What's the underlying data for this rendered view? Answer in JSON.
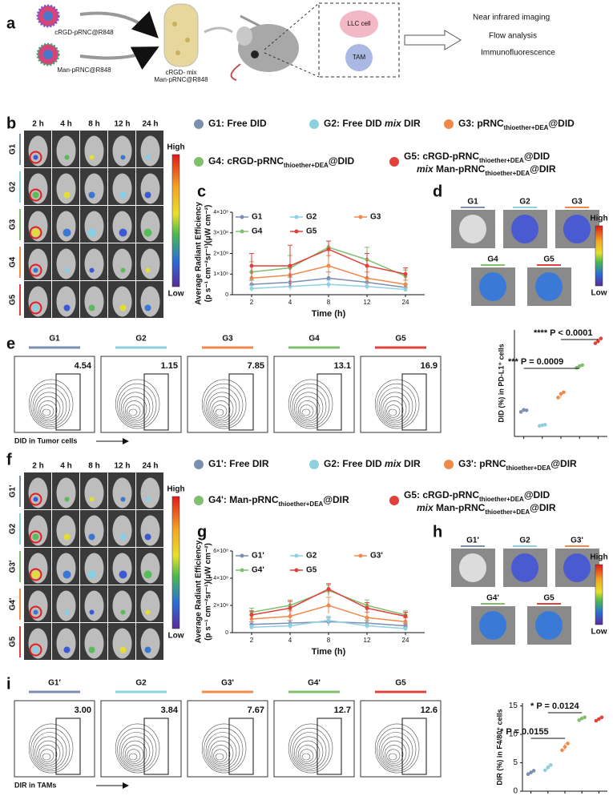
{
  "panel_labels": [
    "a",
    "b",
    "c",
    "d",
    "e",
    "f",
    "g",
    "h",
    "i"
  ],
  "scheme": {
    "particles": [
      "cRGD-pRNC@R848",
      "Man-pRNC@R848"
    ],
    "tube": [
      "cRGD- mix",
      "Man-pRNC@R848"
    ],
    "cells": [
      "LLC cell",
      "TAM"
    ],
    "outputs": [
      "Near infrared imaging",
      "Flow analysis",
      "Immunofluorescence"
    ]
  },
  "imaging_b": {
    "times": [
      "2 h",
      "4 h",
      "8 h",
      "12 h",
      "24 h"
    ],
    "groups": [
      {
        "label": "G1",
        "color": "#7b8fb0"
      },
      {
        "label": "G2",
        "color": "#8ecfe0"
      },
      {
        "label": "G3",
        "color": "#7fbf6e"
      },
      {
        "label": "G4",
        "color": "#f08a4b"
      },
      {
        "label": "G5",
        "color": "#e0413a"
      }
    ],
    "scale": [
      "High",
      "Low"
    ]
  },
  "legend_b": [
    {
      "color": "#7b8fb0",
      "lines": [
        [
          {
            "t": "G1: Free DID"
          }
        ]
      ]
    },
    {
      "color": "#8ecfe0",
      "lines": [
        [
          {
            "t": "G2: Free DID "
          },
          {
            "t": "mix",
            "it": true
          },
          {
            "t": " DIR"
          }
        ]
      ]
    },
    {
      "color": "#f08a4b",
      "lines": [
        [
          {
            "t": "G3: pRNC"
          },
          {
            "t": "thioether+DEA",
            "sub": true
          },
          {
            "t": "@DID"
          }
        ]
      ]
    },
    {
      "color": "#7fbf6e",
      "lines": [
        [
          {
            "t": "G4: cRGD-pRNC"
          },
          {
            "t": "thioether+DEA",
            "sub": true
          },
          {
            "t": "@DID"
          }
        ]
      ]
    },
    {
      "color": "#e0413a",
      "lines": [
        [
          {
            "t": "G5: cRGD-pRNC"
          },
          {
            "t": "thioether+DEA",
            "sub": true
          },
          {
            "t": "@DID"
          }
        ],
        [
          {
            "t": "mix",
            "it": true
          },
          {
            "t": " Man-pRNC"
          },
          {
            "t": "thioether+DEA",
            "sub": true
          },
          {
            "t": "@DIR"
          }
        ]
      ]
    }
  ],
  "organs_d": {
    "groups": [
      {
        "label": "G1",
        "color": "#7b8fb0"
      },
      {
        "label": "G2",
        "color": "#8ecfe0"
      },
      {
        "label": "G3",
        "color": "#f08a4b"
      },
      {
        "label": "G4",
        "color": "#7fbf6e"
      },
      {
        "label": "G5",
        "color": "#e0413a"
      }
    ],
    "scale": [
      "High",
      "Low"
    ]
  },
  "flow_e": {
    "groups": [
      {
        "label": "G1",
        "color": "#7b8fb0",
        "value": "4.54"
      },
      {
        "label": "G2",
        "color": "#8ecfe0",
        "value": "1.15"
      },
      {
        "label": "G3",
        "color": "#f08a4b",
        "value": "7.85"
      },
      {
        "label": "G4",
        "color": "#7fbf6e",
        "value": "13.1"
      },
      {
        "label": "G5",
        "color": "#e0413a",
        "value": "16.9"
      }
    ],
    "x_label": "DID in Tumor cells"
  },
  "imaging_f": {
    "times": [
      "2 h",
      "4 h",
      "8 h",
      "12 h",
      "24 h"
    ],
    "groups": [
      {
        "label": "G1'",
        "color": "#7b8fb0"
      },
      {
        "label": "G2",
        "color": "#8ecfe0"
      },
      {
        "label": "G3'",
        "color": "#7fbf6e"
      },
      {
        "label": "G4'",
        "color": "#f08a4b"
      },
      {
        "label": "G5",
        "color": "#e0413a"
      }
    ],
    "scale": [
      "High",
      "Low"
    ]
  },
  "legend_f": [
    {
      "color": "#7b8fb0",
      "lines": [
        [
          {
            "t": "G1': Free DIR"
          }
        ]
      ]
    },
    {
      "color": "#8ecfe0",
      "lines": [
        [
          {
            "t": "G2: Free DID "
          },
          {
            "t": "mix",
            "it": true
          },
          {
            "t": " DIR"
          }
        ]
      ]
    },
    {
      "color": "#f08a4b",
      "lines": [
        [
          {
            "t": "G3': pRNC"
          },
          {
            "t": "thioether+DEA",
            "sub": true
          },
          {
            "t": "@DIR"
          }
        ]
      ]
    },
    {
      "color": "#7fbf6e",
      "lines": [
        [
          {
            "t": "G4': Man-pRNC"
          },
          {
            "t": "thioether+DEA",
            "sub": true
          },
          {
            "t": "@DIR"
          }
        ]
      ]
    },
    {
      "color": "#e0413a",
      "lines": [
        [
          {
            "t": "G5: cRGD-pRNC"
          },
          {
            "t": "thioether+DEA",
            "sub": true
          },
          {
            "t": "@DID"
          }
        ],
        [
          {
            "t": "mix",
            "it": true
          },
          {
            "t": " Man-pRNC"
          },
          {
            "t": "thioether+DEA",
            "sub": true
          },
          {
            "t": "@DIR"
          }
        ]
      ]
    }
  ],
  "organs_h": {
    "groups": [
      {
        "label": "G1'",
        "color": "#7b8fb0"
      },
      {
        "label": "G2",
        "color": "#8ecfe0"
      },
      {
        "label": "G3'",
        "color": "#f08a4b"
      },
      {
        "label": "G4'",
        "color": "#7fbf6e"
      },
      {
        "label": "G5",
        "color": "#e0413a"
      }
    ],
    "scale": [
      "High",
      "Low"
    ]
  },
  "flow_i": {
    "groups": [
      {
        "label": "G1'",
        "color": "#7b8fb0",
        "value": "3.00"
      },
      {
        "label": "G2",
        "color": "#8ecfe0",
        "value": "3.84"
      },
      {
        "label": "G3'",
        "color": "#f08a4b",
        "value": "7.67"
      },
      {
        "label": "G4'",
        "color": "#7fbf6e",
        "value": "12.7"
      },
      {
        "label": "G5",
        "color": "#e0413a",
        "value": "12.6"
      }
    ],
    "x_label": "DIR in TAMs"
  },
  "chart_data": [
    {
      "type": "line",
      "y_label": [
        "Average Radiant Efficiency",
        "(p s⁻¹ cm⁻²sr⁻¹)(μW cm⁻²)"
      ],
      "x_label": "Time (h)",
      "categories": [
        "2",
        "4",
        "8",
        "12",
        "24"
      ],
      "ylim": [
        0,
        400000000
      ],
      "yticks": [
        0,
        {
          "value": 100000000,
          "label": "1×10⁸"
        },
        {
          "value": 200000000,
          "label": "2×10⁸"
        },
        {
          "value": 300000000,
          "label": "3×10⁸"
        },
        {
          "value": 400000000,
          "label": "4×10⁸"
        }
      ],
      "series": [
        {
          "name": "G1",
          "color": "#7b8fb0",
          "values": [
            50000000,
            60000000,
            80000000,
            60000000,
            35000000
          ],
          "errors": [
            20000000,
            25000000,
            30000000,
            20000000,
            15000000
          ]
        },
        {
          "name": "G2",
          "color": "#8ecfe0",
          "values": [
            30000000,
            40000000,
            50000000,
            40000000,
            25000000
          ],
          "errors": [
            15000000,
            20000000,
            20000000,
            15000000,
            10000000
          ]
        },
        {
          "name": "G3",
          "color": "#f08a4b",
          "values": [
            80000000,
            95000000,
            140000000,
            80000000,
            50000000
          ],
          "errors": [
            30000000,
            40000000,
            50000000,
            30000000,
            20000000
          ]
        },
        {
          "name": "G4",
          "color": "#7fbf6e",
          "values": [
            110000000,
            130000000,
            230000000,
            170000000,
            90000000
          ],
          "errors": [
            50000000,
            60000000,
            30000000,
            60000000,
            30000000
          ]
        },
        {
          "name": "G5",
          "color": "#e0413a",
          "values": [
            140000000,
            140000000,
            220000000,
            140000000,
            100000000
          ],
          "errors": [
            60000000,
            100000000,
            40000000,
            60000000,
            30000000
          ]
        }
      ]
    },
    {
      "type": "scatter",
      "y_label": "DID (%) in PD-L1⁺ cells",
      "ylim": [
        0,
        20
      ],
      "series": [
        {
          "color": "#7b8fb0",
          "values": [
            4.6,
            5.0,
            4.9
          ]
        },
        {
          "color": "#8ecfe0",
          "values": [
            2.0,
            2.1,
            2.2
          ]
        },
        {
          "color": "#f08a4b",
          "values": [
            7.3,
            8.0,
            8.3
          ]
        },
        {
          "color": "#7fbf6e",
          "values": [
            12.9,
            13.2,
            13.4
          ]
        },
        {
          "color": "#e0413a",
          "values": [
            17.5,
            17.9,
            18.4
          ]
        }
      ],
      "annotations": [
        "**** P < 0.0001",
        "*** P = 0.0009"
      ]
    },
    {
      "type": "line",
      "y_label": [
        "Average Radiant Efficiency",
        "(p s⁻¹ cm⁻²sr⁻¹)(μW cm⁻²)"
      ],
      "x_label": "Time (h)",
      "categories": [
        "2",
        "4",
        "8",
        "12",
        "24"
      ],
      "ylim": [
        0,
        600000000
      ],
      "yticks": [
        0,
        {
          "value": 200000000,
          "label": "2×10⁸"
        },
        {
          "value": 400000000,
          "label": "4×10⁸"
        },
        {
          "value": 600000000,
          "label": "6×10⁸"
        }
      ],
      "series": [
        {
          "name": "G1'",
          "color": "#7b8fb0",
          "values": [
            60000000,
            70000000,
            80000000,
            70000000,
            50000000
          ],
          "errors": [
            20000000,
            20000000,
            30000000,
            20000000,
            15000000
          ]
        },
        {
          "name": "G2",
          "color": "#8ecfe0",
          "values": [
            40000000,
            50000000,
            90000000,
            50000000,
            30000000
          ],
          "errors": [
            15000000,
            20000000,
            30000000,
            20000000,
            10000000
          ]
        },
        {
          "name": "G3'",
          "color": "#f08a4b",
          "values": [
            100000000,
            120000000,
            200000000,
            110000000,
            80000000
          ],
          "errors": [
            30000000,
            40000000,
            60000000,
            40000000,
            30000000
          ]
        },
        {
          "name": "G4'",
          "color": "#7fbf6e",
          "values": [
            150000000,
            200000000,
            310000000,
            200000000,
            130000000
          ],
          "errors": [
            30000000,
            40000000,
            40000000,
            40000000,
            30000000
          ]
        },
        {
          "name": "G5",
          "color": "#e0413a",
          "values": [
            130000000,
            180000000,
            320000000,
            180000000,
            120000000
          ],
          "errors": [
            30000000,
            50000000,
            40000000,
            40000000,
            30000000
          ]
        }
      ]
    },
    {
      "type": "scatter",
      "y_label": "DIR (%) in F4/80⁺ cells",
      "ylim": [
        0,
        15.5
      ],
      "yticks": [
        0,
        5,
        10,
        15
      ],
      "series": [
        {
          "color": "#7b8fb0",
          "values": [
            3.0,
            3.3,
            3.6
          ]
        },
        {
          "color": "#8ecfe0",
          "values": [
            3.7,
            4.2,
            4.6
          ]
        },
        {
          "color": "#f08a4b",
          "values": [
            7.2,
            7.8,
            8.4
          ]
        },
        {
          "color": "#7fbf6e",
          "values": [
            12.5,
            12.8,
            13.0
          ]
        },
        {
          "color": "#e0413a",
          "values": [
            12.4,
            12.7,
            13.0
          ]
        }
      ],
      "annotations": [
        "* P = 0.0124",
        "* P = 0.0155"
      ]
    }
  ]
}
